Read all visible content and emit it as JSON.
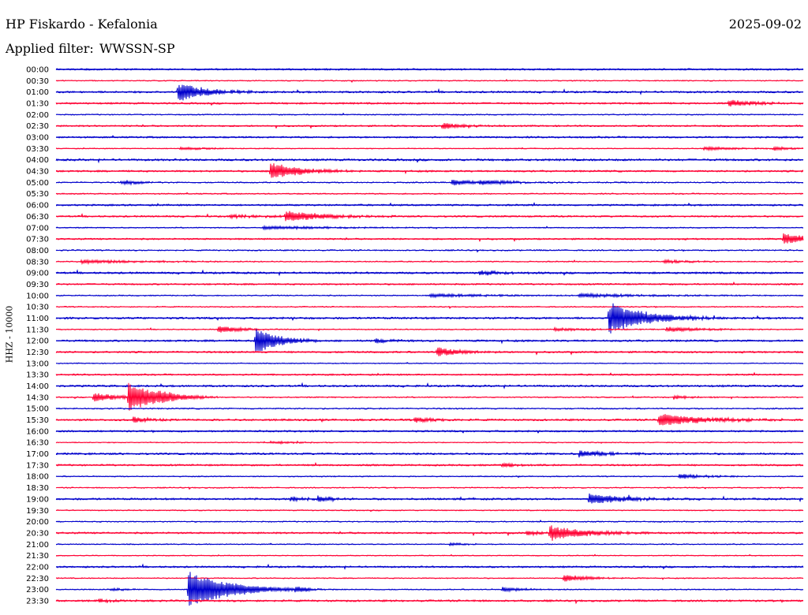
{
  "header": {
    "station_title": "HP Fiskardo - Kefalonia",
    "filter_prefix": "Applied filter:",
    "filter_name": "WWSSN-SP",
    "date": "2025-09-02"
  },
  "colors": {
    "trace_a": "#0000cc",
    "trace_b": "#ff0033",
    "background": "#ffffff",
    "text": "#000000"
  },
  "chart_data": {
    "type": "line",
    "title": "HP Fiskardo - Kefalonia",
    "subtitle": "Applied filter: WWSSN-SP",
    "date": "2025-09-02",
    "ylabel": "HHZ - 10000",
    "xlabel": "",
    "grid": false,
    "row_labels": [
      "00:00",
      "00:30",
      "01:00",
      "01:30",
      "02:00",
      "02:30",
      "03:00",
      "03:30",
      "04:00",
      "04:30",
      "05:00",
      "05:30",
      "06:00",
      "06:30",
      "07:00",
      "07:30",
      "08:00",
      "08:30",
      "09:00",
      "09:30",
      "10:00",
      "10:30",
      "11:00",
      "11:30",
      "12:00",
      "12:30",
      "13:00",
      "13:30",
      "14:00",
      "14:30",
      "15:00",
      "15:30",
      "16:00",
      "16:30",
      "17:00",
      "17:30",
      "18:00",
      "18:30",
      "19:00",
      "19:30",
      "20:00",
      "20:30",
      "21:00",
      "21:30",
      "22:00",
      "22:30",
      "23:00",
      "23:30"
    ],
    "row_colors": [
      "blue",
      "red"
    ],
    "row_noise": [
      2.0,
      1.2,
      2.2,
      2.0,
      1.3,
      1.8,
      2.0,
      1.0,
      2.4,
      2.0,
      1.4,
      1.4,
      2.0,
      1.9,
      1.2,
      1.8,
      1.5,
      1.3,
      2.2,
      1.8,
      1.3,
      1.3,
      2.3,
      1.2,
      2.2,
      2.0,
      1.1,
      1.8,
      2.2,
      1.4,
      1.5,
      2.2,
      2.0,
      1.1,
      2.2,
      2.0,
      1.2,
      1.3,
      2.2,
      1.2,
      1.3,
      2.0,
      1.2,
      1.0,
      2.0,
      1.2,
      1.2,
      2.2
    ],
    "events_window_minutes": 30,
    "events": [
      {
        "row": 2,
        "minute": 4.9,
        "amplitude": 13,
        "duration": 0.35
      },
      {
        "row": 3,
        "minute": 27.0,
        "amplitude": 4,
        "duration": 0.4
      },
      {
        "row": 5,
        "minute": 15.5,
        "amplitude": 4,
        "duration": 0.3
      },
      {
        "row": 7,
        "minute": 5.0,
        "amplitude": 2,
        "duration": 0.4
      },
      {
        "row": 7,
        "minute": 26.0,
        "amplitude": 2,
        "duration": 0.6
      },
      {
        "row": 7,
        "minute": 28.8,
        "amplitude": 2,
        "duration": 0.2
      },
      {
        "row": 9,
        "minute": 8.6,
        "amplitude": 11,
        "duration": 0.4
      },
      {
        "row": 10,
        "minute": 2.6,
        "amplitude": 3,
        "duration": 0.3
      },
      {
        "row": 10,
        "minute": 15.9,
        "amplitude": 4,
        "duration": 0.3
      },
      {
        "row": 10,
        "minute": 17.0,
        "amplitude": 2,
        "duration": 0.8
      },
      {
        "row": 13,
        "minute": 9.2,
        "amplitude": 7,
        "duration": 0.5
      },
      {
        "row": 13,
        "minute": 7.0,
        "amplitude": 2,
        "duration": 0.5
      },
      {
        "row": 14,
        "minute": 8.3,
        "amplitude": 2,
        "duration": 1.0
      },
      {
        "row": 15,
        "minute": 29.2,
        "amplitude": 7,
        "duration": 0.35
      },
      {
        "row": 17,
        "minute": 1.0,
        "amplitude": 2,
        "duration": 1.0
      },
      {
        "row": 17,
        "minute": 24.4,
        "amplitude": 2,
        "duration": 0.4
      },
      {
        "row": 18,
        "minute": 17.0,
        "amplitude": 3,
        "duration": 0.3
      },
      {
        "row": 20,
        "minute": 15.0,
        "amplitude": 2,
        "duration": 1.0
      },
      {
        "row": 20,
        "minute": 21.0,
        "amplitude": 2,
        "duration": 1.0
      },
      {
        "row": 22,
        "minute": 22.2,
        "amplitude": 20,
        "duration": 0.5
      },
      {
        "row": 23,
        "minute": 6.5,
        "amplitude": 5,
        "duration": 0.3
      },
      {
        "row": 23,
        "minute": 20.0,
        "amplitude": 2,
        "duration": 0.5
      },
      {
        "row": 23,
        "minute": 24.5,
        "amplitude": 3,
        "duration": 0.5
      },
      {
        "row": 24,
        "minute": 8.0,
        "amplitude": 18,
        "duration": 0.3
      },
      {
        "row": 24,
        "minute": 12.8,
        "amplitude": 3,
        "duration": 0.2
      },
      {
        "row": 25,
        "minute": 15.3,
        "amplitude": 6,
        "duration": 0.3
      },
      {
        "row": 29,
        "minute": 1.5,
        "amplitude": 6,
        "duration": 0.3
      },
      {
        "row": 29,
        "minute": 2.9,
        "amplitude": 18,
        "duration": 0.4
      },
      {
        "row": 29,
        "minute": 4.1,
        "amplitude": 3,
        "duration": 0.2
      },
      {
        "row": 29,
        "minute": 24.8,
        "amplitude": 3,
        "duration": 0.2
      },
      {
        "row": 31,
        "minute": 3.1,
        "amplitude": 5,
        "duration": 0.2
      },
      {
        "row": 31,
        "minute": 14.4,
        "amplitude": 4,
        "duration": 0.2
      },
      {
        "row": 31,
        "minute": 24.2,
        "amplitude": 8,
        "duration": 0.6
      },
      {
        "row": 33,
        "minute": 8.6,
        "amplitude": 2,
        "duration": 0.3
      },
      {
        "row": 34,
        "minute": 21.0,
        "amplitude": 4,
        "duration": 0.4
      },
      {
        "row": 35,
        "minute": 17.9,
        "amplitude": 3,
        "duration": 0.2
      },
      {
        "row": 36,
        "minute": 25.0,
        "amplitude": 3,
        "duration": 0.4
      },
      {
        "row": 38,
        "minute": 9.4,
        "amplitude": 3,
        "duration": 0.2
      },
      {
        "row": 38,
        "minute": 10.5,
        "amplitude": 4,
        "duration": 0.2
      },
      {
        "row": 38,
        "minute": 21.4,
        "amplitude": 7,
        "duration": 0.45
      },
      {
        "row": 41,
        "minute": 18.9,
        "amplitude": 3,
        "duration": 0.2
      },
      {
        "row": 41,
        "minute": 19.8,
        "amplitude": 10,
        "duration": 0.45
      },
      {
        "row": 42,
        "minute": 15.8,
        "amplitude": 2,
        "duration": 0.2
      },
      {
        "row": 45,
        "minute": 20.4,
        "amplitude": 5,
        "duration": 0.3
      },
      {
        "row": 46,
        "minute": 2.2,
        "amplitude": 2,
        "duration": 0.2
      },
      {
        "row": 46,
        "minute": 5.3,
        "amplitude": 24,
        "duration": 0.55
      },
      {
        "row": 46,
        "minute": 9.6,
        "amplitude": 3,
        "duration": 0.2
      },
      {
        "row": 46,
        "minute": 17.9,
        "amplitude": 3,
        "duration": 0.3
      },
      {
        "row": 47,
        "minute": 1.7,
        "amplitude": 2,
        "duration": 0.2
      }
    ]
  }
}
